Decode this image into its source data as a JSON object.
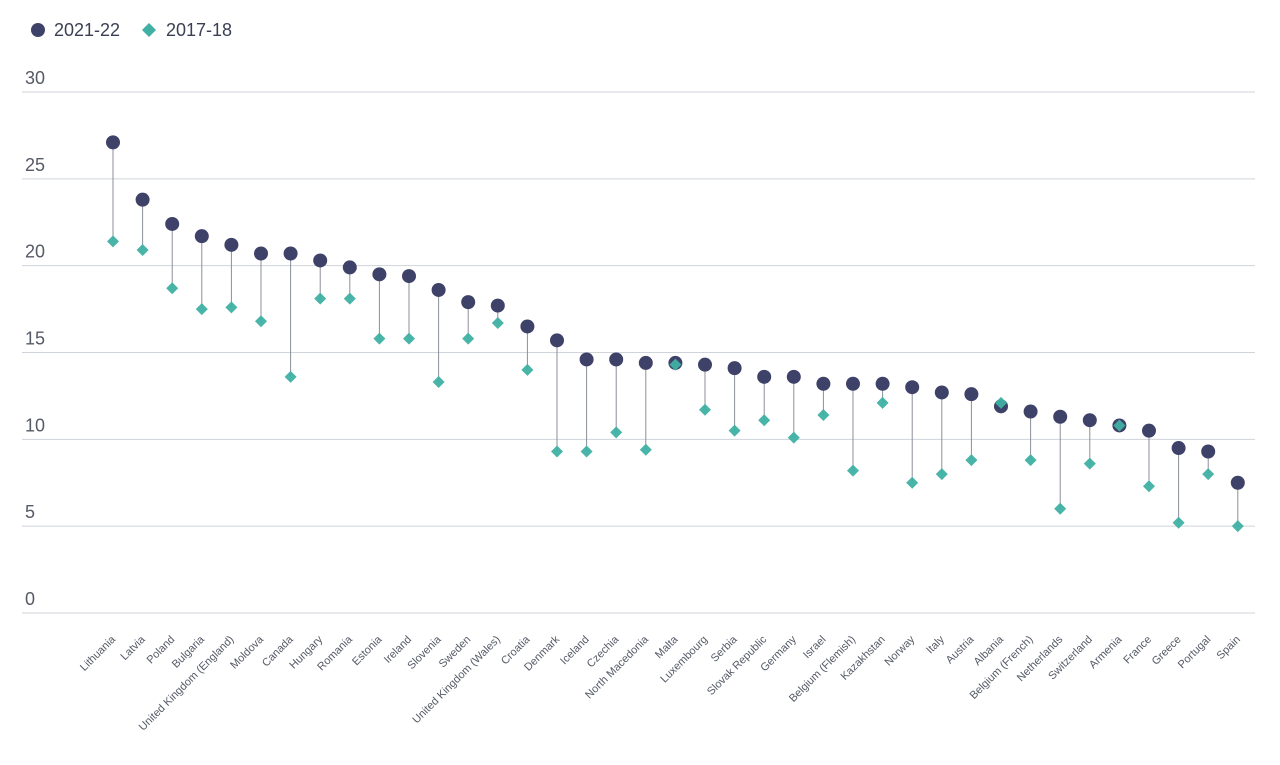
{
  "chart_data": {
    "type": "dumbbell",
    "title": "",
    "xlabel": "",
    "ylabel": "",
    "ylim": [
      0,
      30
    ],
    "yticks": [
      0,
      5,
      10,
      15,
      20,
      25,
      30
    ],
    "grid": true,
    "legend_position": "top-left",
    "colors": {
      "2021-22": "#3f4268",
      "2017-18": "#3fb0a3"
    },
    "categories": [
      "Lithuania",
      "Latvia",
      "Poland",
      "Bulgaria",
      "United Kingdom (England)",
      "Moldova",
      "Canada",
      "Hungary",
      "Romania",
      "Estonia",
      "Ireland",
      "Slovenia",
      "Sweden",
      "United Kingdom (Wales)",
      "Croatia",
      "Denmark",
      "Iceland",
      "Czechia",
      "North Macedonia",
      "Malta",
      "Luxembourg",
      "Serbia",
      "Slovak Republic",
      "Germany",
      "Israel",
      "Belgium (Flemish)",
      "Kazakhstan",
      "Norway",
      "Italy",
      "Austria",
      "Albania",
      "Belgium (French)",
      "Netherlands",
      "Switzerland",
      "Armenia",
      "France",
      "Greece",
      "Portugal",
      "Spain"
    ],
    "series": [
      {
        "name": "2021-22",
        "marker": "circle",
        "values": [
          27.1,
          23.8,
          22.4,
          21.7,
          21.2,
          20.7,
          20.7,
          20.3,
          19.9,
          19.5,
          19.4,
          18.6,
          17.9,
          17.7,
          16.5,
          15.7,
          14.6,
          14.6,
          14.4,
          14.4,
          14.3,
          14.1,
          13.6,
          13.6,
          13.2,
          13.2,
          13.2,
          13.0,
          12.7,
          12.6,
          11.9,
          11.6,
          11.3,
          11.1,
          10.8,
          10.5,
          9.5,
          9.3,
          7.5
        ]
      },
      {
        "name": "2017-18",
        "marker": "diamond",
        "values": [
          21.4,
          20.9,
          18.7,
          17.5,
          17.6,
          16.8,
          13.6,
          18.1,
          18.1,
          15.8,
          15.8,
          13.3,
          15.8,
          16.7,
          14.0,
          9.3,
          9.3,
          10.4,
          9.4,
          14.3,
          11.7,
          10.5,
          11.1,
          10.1,
          11.4,
          8.2,
          12.1,
          7.5,
          8.0,
          8.8,
          12.1,
          8.8,
          6.0,
          8.6,
          10.8,
          7.3,
          5.2,
          8.0,
          5.0
        ]
      }
    ]
  }
}
